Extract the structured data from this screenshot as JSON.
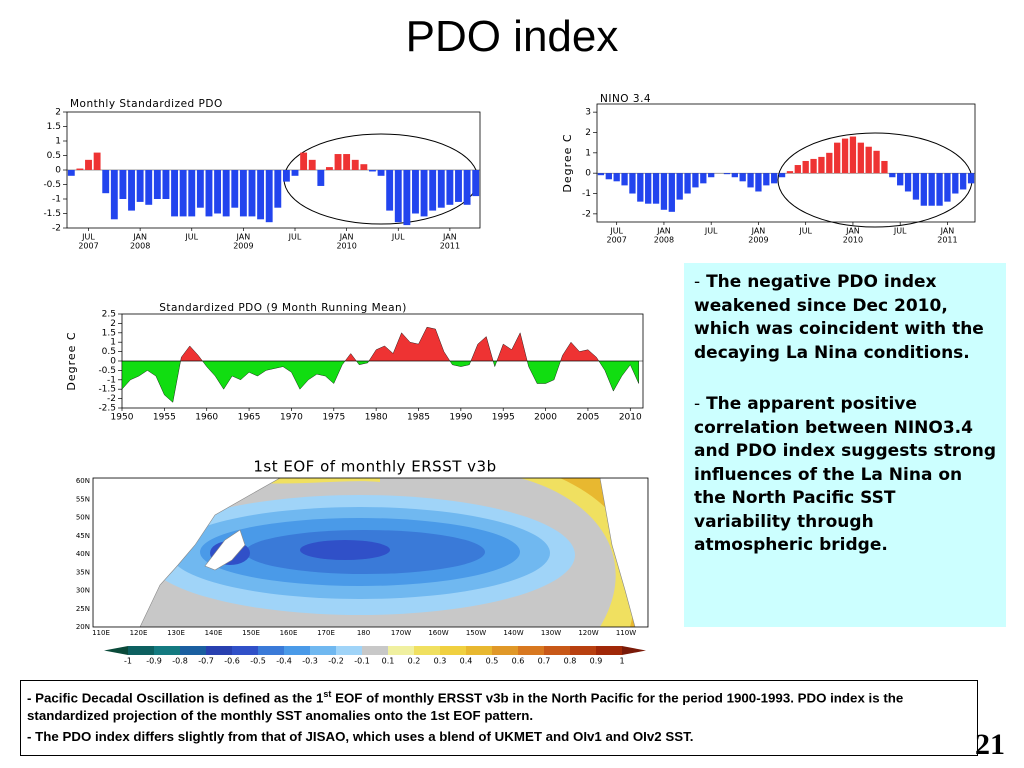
{
  "title": "PDO index",
  "chart_data": [
    {
      "type": "bar",
      "title": "Monthly Standardized PDO",
      "categories": [
        null,
        null,
        "JUL",
        null,
        null,
        null,
        null,
        null,
        "JAN",
        null,
        null,
        null,
        null,
        null,
        "JUL",
        null,
        null,
        null,
        null,
        null,
        "JAN",
        null,
        null,
        null,
        null,
        null,
        "JUL",
        null,
        null,
        null,
        null,
        null,
        "JAN",
        null,
        null,
        null,
        null,
        null,
        "JUL",
        null,
        null,
        null,
        null,
        null,
        "JAN",
        null,
        null,
        null
      ],
      "years": [
        null,
        null,
        "2007",
        null,
        null,
        null,
        null,
        null,
        "2008",
        null,
        null,
        null,
        null,
        null,
        null,
        null,
        null,
        null,
        null,
        null,
        "2009",
        null,
        null,
        null,
        null,
        null,
        null,
        null,
        null,
        null,
        null,
        null,
        "2010",
        null,
        null,
        null,
        null,
        null,
        null,
        null,
        null,
        null,
        null,
        null,
        "2011",
        null,
        null,
        null
      ],
      "values": [
        -0.2,
        0.05,
        0.35,
        0.6,
        -0.8,
        -1.7,
        -1.0,
        -1.4,
        -1.1,
        -1.2,
        -1.0,
        -1.0,
        -1.6,
        -1.6,
        -1.6,
        -1.3,
        -1.6,
        -1.5,
        -1.6,
        -1.3,
        -1.6,
        -1.6,
        -1.7,
        -1.8,
        -1.3,
        -0.4,
        -0.2,
        0.6,
        0.35,
        -0.55,
        0.1,
        0.55,
        0.55,
        0.35,
        0.2,
        -0.05,
        -0.2,
        -1.4,
        -1.8,
        -1.9,
        -1.5,
        -1.6,
        -1.4,
        -1.3,
        -1.2,
        -1.1,
        -1.2,
        -0.9
      ],
      "positive_color": "#ee3333",
      "negative_color": "#2244ee",
      "ylim": [
        -2,
        2
      ],
      "yticks": [
        -2,
        -1.5,
        -1,
        -0.5,
        0,
        0.5,
        1,
        1.5,
        2
      ]
    },
    {
      "type": "bar",
      "title": "NINO 3.4",
      "y_label": "Degree C",
      "categories": [
        null,
        null,
        "JUL",
        null,
        null,
        null,
        null,
        null,
        "JAN",
        null,
        null,
        null,
        null,
        null,
        "JUL",
        null,
        null,
        null,
        null,
        null,
        "JAN",
        null,
        null,
        null,
        null,
        null,
        "JUL",
        null,
        null,
        null,
        null,
        null,
        "JAN",
        null,
        null,
        null,
        null,
        null,
        "JUL",
        null,
        null,
        null,
        null,
        null,
        "JAN",
        null,
        null,
        null
      ],
      "years": [
        null,
        null,
        "2007",
        null,
        null,
        null,
        null,
        null,
        "2008",
        null,
        null,
        null,
        null,
        null,
        null,
        null,
        null,
        null,
        null,
        null,
        "2009",
        null,
        null,
        null,
        null,
        null,
        null,
        null,
        null,
        null,
        null,
        null,
        "2010",
        null,
        null,
        null,
        null,
        null,
        null,
        null,
        null,
        null,
        null,
        null,
        "2011",
        null,
        null,
        null
      ],
      "values": [
        -0.1,
        -0.3,
        -0.4,
        -0.6,
        -1.0,
        -1.4,
        -1.5,
        -1.5,
        -1.8,
        -1.9,
        -1.3,
        -1.0,
        -0.7,
        -0.5,
        -0.2,
        0.0,
        -0.05,
        -0.2,
        -0.4,
        -0.7,
        -0.9,
        -0.6,
        -0.5,
        -0.2,
        0.1,
        0.4,
        0.6,
        0.7,
        0.8,
        1.0,
        1.5,
        1.7,
        1.8,
        1.5,
        1.3,
        1.1,
        0.6,
        -0.2,
        -0.6,
        -0.9,
        -1.3,
        -1.6,
        -1.6,
        -1.6,
        -1.4,
        -1.0,
        -0.8,
        -0.5
      ],
      "positive_color": "#ee3333",
      "negative_color": "#2244ee",
      "ylim": [
        -2.4,
        3.4
      ],
      "yticks": [
        -2,
        -1,
        0,
        1,
        2,
        3
      ]
    },
    {
      "type": "area",
      "title": "Standardized PDO (9 Month Running Mean)",
      "y_label": "Degree C",
      "x": [
        1950,
        1951,
        1952,
        1953,
        1954,
        1955,
        1956,
        1957,
        1958,
        1959,
        1960,
        1961,
        1962,
        1963,
        1964,
        1965,
        1966,
        1967,
        1968,
        1969,
        1970,
        1971,
        1972,
        1973,
        1974,
        1975,
        1976,
        1977,
        1978,
        1979,
        1980,
        1981,
        1982,
        1983,
        1984,
        1985,
        1986,
        1987,
        1988,
        1989,
        1990,
        1991,
        1992,
        1993,
        1994,
        1995,
        1996,
        1997,
        1998,
        1999,
        2000,
        2001,
        2002,
        2003,
        2004,
        2005,
        2006,
        2007,
        2008,
        2009,
        2010,
        2011
      ],
      "values": [
        -1.5,
        -1.0,
        -0.8,
        -0.5,
        -0.8,
        -1.8,
        -2.2,
        0.2,
        0.8,
        0.3,
        -0.3,
        -0.8,
        -1.5,
        -0.8,
        -1.0,
        -0.6,
        -0.8,
        -0.5,
        -0.4,
        -0.3,
        -0.6,
        -1.5,
        -1.0,
        -0.7,
        -0.8,
        -1.2,
        -0.2,
        0.4,
        -0.2,
        -0.1,
        0.6,
        0.8,
        0.4,
        1.5,
        1.0,
        0.9,
        1.8,
        1.7,
        0.5,
        -0.2,
        -0.3,
        -0.2,
        0.9,
        1.3,
        -0.3,
        0.9,
        0.6,
        1.5,
        -0.3,
        -1.2,
        -1.2,
        -1.0,
        0.3,
        1.0,
        0.5,
        0.6,
        0.2,
        -0.5,
        -1.6,
        -0.8,
        -0.2,
        -1.2
      ],
      "positive_color": "#ee3333",
      "negative_color": "#11dd11",
      "xlim": [
        1950,
        2011.5
      ],
      "xticks": [
        1950,
        1955,
        1960,
        1965,
        1970,
        1975,
        1980,
        1985,
        1990,
        1995,
        2000,
        2005,
        2010
      ],
      "ylim": [
        -2.5,
        2.5
      ],
      "yticks": [
        -2.5,
        -2,
        -1.5,
        -1,
        -0.5,
        0,
        0.5,
        1,
        1.5,
        2,
        2.5
      ]
    }
  ],
  "eof_map": {
    "title": "1st EOF of monthly ERSST v3b",
    "lat_labels": [
      "60N",
      "55N",
      "50N",
      "45N",
      "40N",
      "35N",
      "30N",
      "25N",
      "20N"
    ],
    "lon_labels": [
      "110E",
      "120E",
      "130E",
      "140E",
      "150E",
      "160E",
      "170E",
      "180",
      "170W",
      "160W",
      "150W",
      "140W",
      "130W",
      "120W",
      "110W"
    ],
    "colorbar_labels": [
      -1,
      -0.9,
      -0.8,
      -0.7,
      -0.6,
      -0.5,
      -0.4,
      -0.3,
      -0.2,
      -0.1,
      0.1,
      0.2,
      0.3,
      0.4,
      0.5,
      0.6,
      0.7,
      0.8,
      0.9,
      1
    ],
    "colorbar_colors": [
      "#0a4a3a",
      "#0d6060",
      "#147a80",
      "#1a5fa0",
      "#2840b0",
      "#3050c8",
      "#3a7ad8",
      "#4a9ae8",
      "#70b8f0",
      "#a0d4f8",
      "#c8c8c8",
      "#f0f0a0",
      "#f0e060",
      "#f0d040",
      "#e8b830",
      "#e09828",
      "#d87820",
      "#c85818",
      "#b84010",
      "#a02808",
      "#7a1a08"
    ]
  },
  "bullet": "-",
  "side_notes": [
    "The negative PDO index weakened since Dec 2010, which was coincident with the decaying La Nina conditions.",
    "The apparent positive correlation between NINO3.4  and PDO index suggests strong influences of the La Nina on the North Pacific SST variability through atmospheric bridge."
  ],
  "footnote_1": {
    "before": "Pacific Decadal Oscillation is defined as the 1",
    "sup": "st",
    "after": " EOF of monthly ERSST v3b in the North Pacific for the period 1900-1993. PDO index is the standardized projection of the monthly SST anomalies onto  the 1st EOF pattern."
  },
  "footnote_2": "The PDO index differs slightly from that of JISAO, which uses a blend of UKMET and OIv1 and OIv2 SST.",
  "page_number": "21"
}
